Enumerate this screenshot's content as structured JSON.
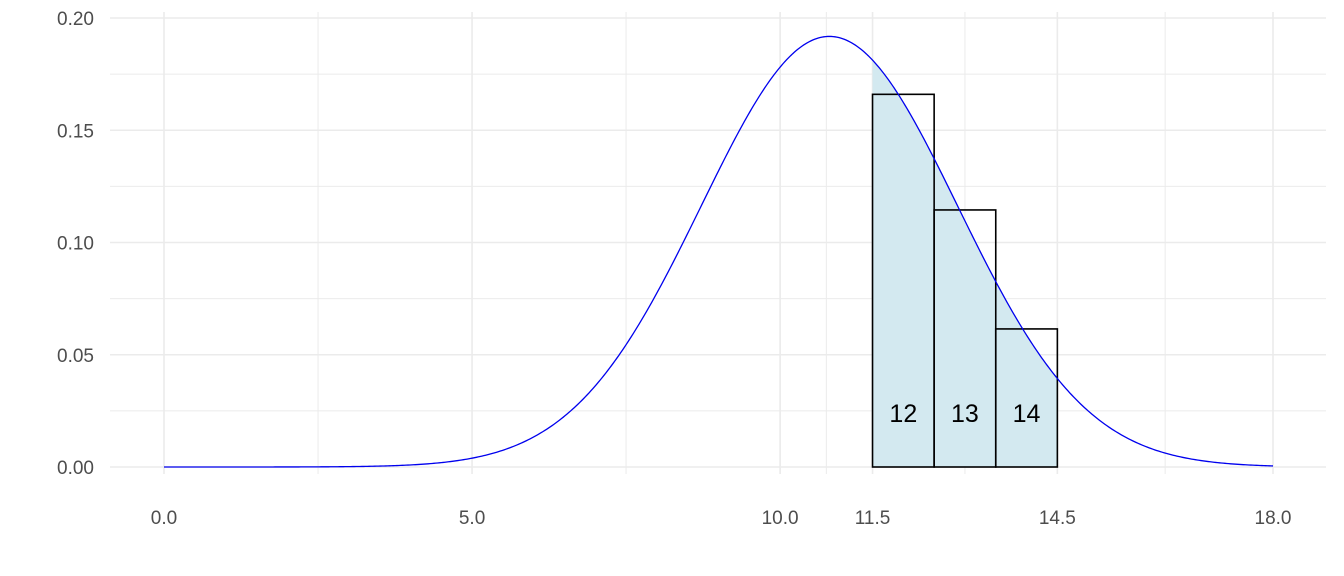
{
  "chart_data": {
    "type": "line",
    "title": "",
    "xlabel": "",
    "ylabel": "",
    "xlim": [
      0,
      18
    ],
    "ylim": [
      0,
      0.2
    ],
    "grid": true,
    "x_ticks": [
      {
        "value": 0,
        "label": "0.0"
      },
      {
        "value": 5,
        "label": "5.0"
      },
      {
        "value": 10,
        "label": "10.0"
      },
      {
        "value": 11.5,
        "label": "11.5"
      },
      {
        "value": 14.5,
        "label": "14.5"
      },
      {
        "value": 18,
        "label": "18.0"
      }
    ],
    "x_minor_grid": [
      2.5,
      7.5,
      10.75,
      13,
      16.25
    ],
    "y_ticks": [
      {
        "value": 0,
        "label": "0.00"
      },
      {
        "value": 0.05,
        "label": "0.05"
      },
      {
        "value": 0.1,
        "label": "0.10"
      },
      {
        "value": 0.15,
        "label": "0.15"
      },
      {
        "value": 0.2,
        "label": "0.20"
      }
    ],
    "y_minor_grid": [
      0.025,
      0.075,
      0.125,
      0.175
    ],
    "curve": {
      "distribution": "normal",
      "mean": 10.8,
      "sd": 2.08,
      "x_range": [
        0,
        18
      ],
      "color": "#0000ee"
    },
    "shaded_region": {
      "x_from": 11.5,
      "x_to": 14.5,
      "color": "#d3e9f0"
    },
    "bars": [
      {
        "label": "12",
        "x_from": 11.5,
        "x_to": 12.5,
        "value": 0.166
      },
      {
        "label": "13",
        "x_from": 12.5,
        "x_to": 13.5,
        "value": 0.1145
      },
      {
        "label": "14",
        "x_from": 13.5,
        "x_to": 14.5,
        "value": 0.0615
      }
    ],
    "colors": {
      "grid": "#ebebeb",
      "bar_outline": "#000000",
      "axis_text": "#4d4d4d"
    }
  }
}
